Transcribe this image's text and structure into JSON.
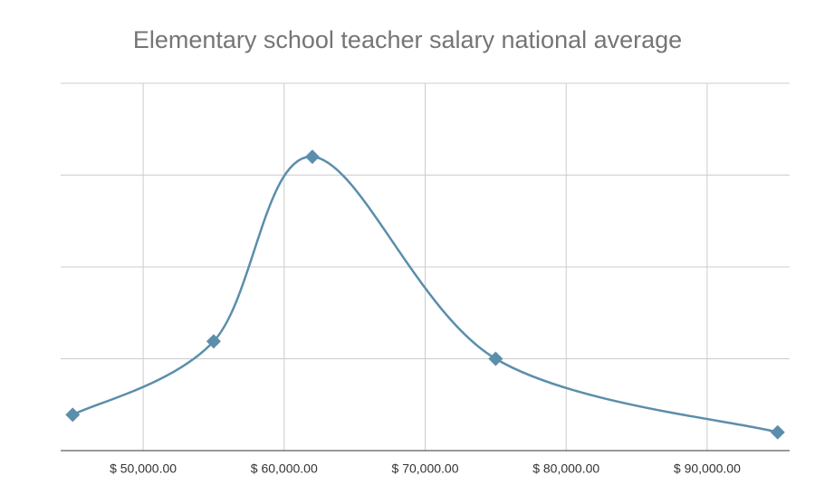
{
  "chart_data": {
    "type": "line",
    "title": "Elementary school teacher salary national average",
    "x": [
      45000,
      55000,
      62000,
      75000,
      95000
    ],
    "series": [
      {
        "color": "#5b8eab",
        "values": [
          0.39,
          1.19,
          3.2,
          1.0,
          0.2
        ]
      }
    ],
    "xlim": [
      44150,
      95850
    ],
    "xticks": [
      {
        "value": 50000,
        "label": "$ 50,000.00"
      },
      {
        "value": 60000,
        "label": "$ 60,000.00"
      },
      {
        "value": 70000,
        "label": "$ 70,000.00"
      },
      {
        "value": 80000,
        "label": "$ 80,000.00"
      },
      {
        "value": 90000,
        "label": "$ 90,000.00"
      }
    ],
    "ylim": [
      0,
      4
    ],
    "yticks": [
      0,
      1,
      2,
      3,
      4
    ],
    "grid": true,
    "smooth": true
  }
}
